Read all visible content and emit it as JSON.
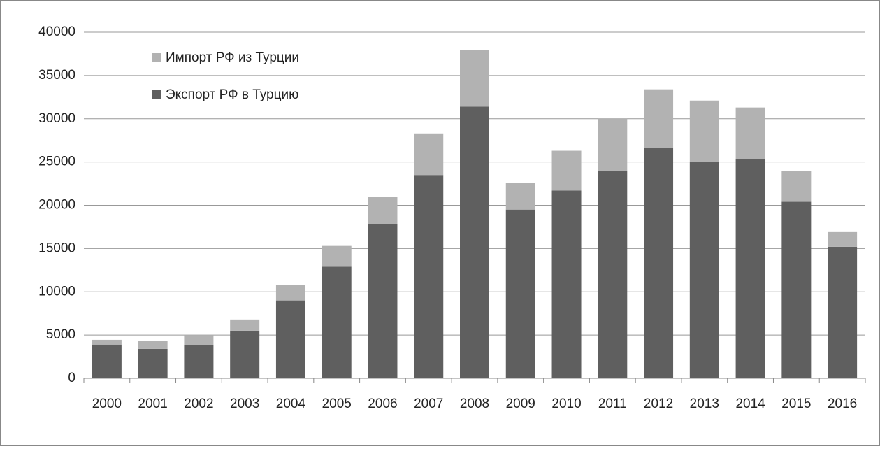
{
  "chart_data": {
    "type": "stacked_bar",
    "categories": [
      "2000",
      "2001",
      "2002",
      "2003",
      "2004",
      "2005",
      "2006",
      "2007",
      "2008",
      "2009",
      "2010",
      "2011",
      "2012",
      "2013",
      "2014",
      "2015",
      "2016"
    ],
    "series": [
      {
        "name": "Экспорт РФ в Турцию",
        "color": "#5f5f5f",
        "values": [
          3900,
          3400,
          3800,
          5500,
          9000,
          12900,
          17800,
          23500,
          31400,
          19500,
          21700,
          24000,
          26600,
          25000,
          25300,
          20400,
          15200
        ]
      },
      {
        "name": "Импорт РФ из Турции",
        "color": "#b2b2b2",
        "values": [
          550,
          900,
          1200,
          1300,
          1800,
          2400,
          3200,
          4800,
          6500,
          3100,
          4600,
          6000,
          6800,
          7100,
          6000,
          3600,
          1700
        ]
      }
    ],
    "ylim": [
      0,
      40000
    ],
    "yticks": [
      0,
      5000,
      10000,
      15000,
      20000,
      25000,
      30000,
      35000,
      40000
    ],
    "grid": true,
    "legend": "top-left"
  }
}
